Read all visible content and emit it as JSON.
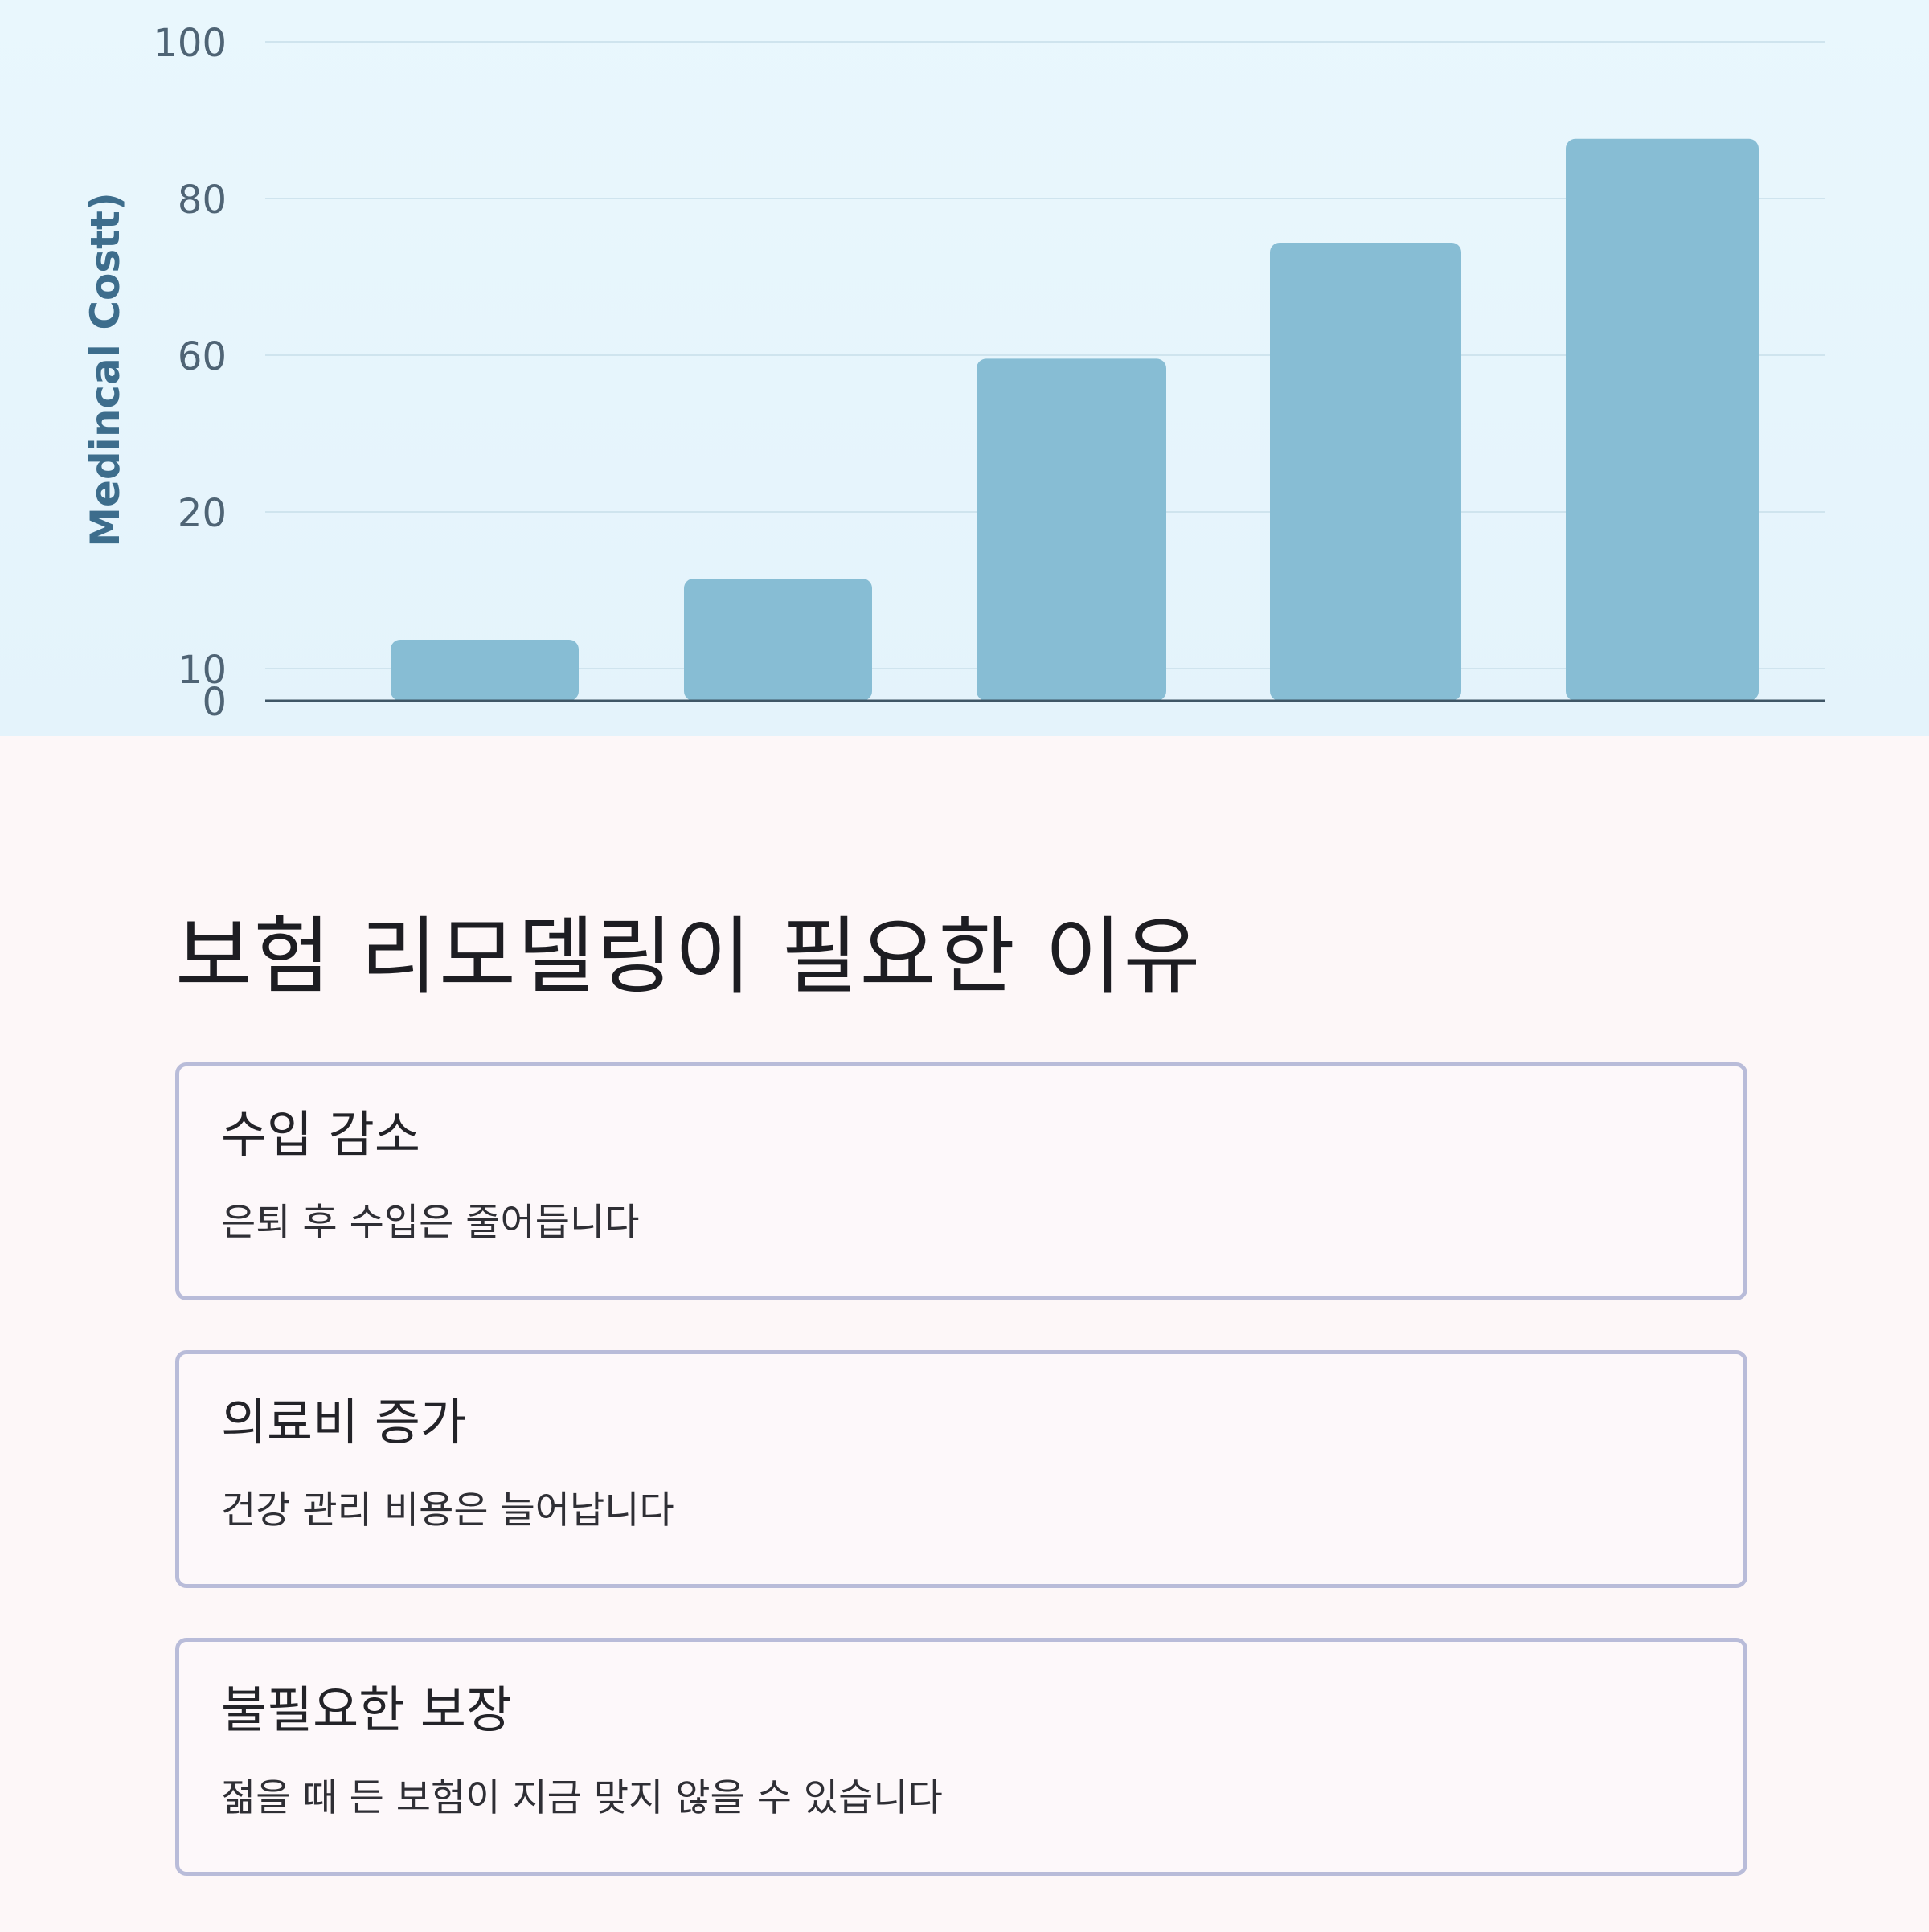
{
  "chart_data": {
    "type": "bar",
    "ylabel": "Medincal Costt)",
    "xlabel": "",
    "y_tick_labels": [
      "100",
      "80",
      "60",
      "20",
      "10",
      "0"
    ],
    "categories": [
      "",
      "",
      "",
      "",
      ""
    ],
    "values": [
      10,
      20,
      56,
      75,
      92
    ],
    "ylim": [
      0,
      100
    ],
    "grid": true,
    "bar_color": "#87bdd4"
  },
  "section": {
    "title": "보험 리모델링이 필요한 이유",
    "cards": [
      {
        "title": "수입 감소",
        "description": "은퇴 후 수입은 줄어듭니다"
      },
      {
        "title": "의료비 증가",
        "description": "건강 관리 비용은 늘어납니다"
      },
      {
        "title": "불필요한 보장",
        "description": "젊을 때 든 보험이 지금 맞지 않을 수 있습니다"
      }
    ]
  },
  "colors": {
    "chart_background": "#e7f5fc",
    "page_background": "#fdf7f8",
    "card_border": "#b9bcd9",
    "axis_text": "#4f6475",
    "ylabel_color": "#3d6d8c"
  }
}
